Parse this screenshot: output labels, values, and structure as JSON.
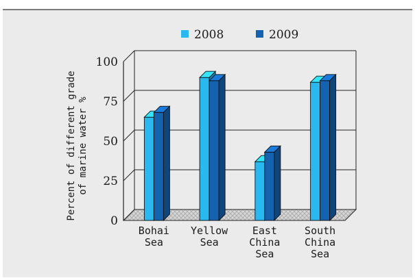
{
  "chart_data": {
    "type": "bar",
    "categories": [
      [
        "Bohai",
        "Sea"
      ],
      [
        "Yellow",
        "Sea"
      ],
      [
        "East",
        "China",
        "Sea"
      ],
      [
        "South",
        "China",
        "Sea"
      ]
    ],
    "series": [
      {
        "name": "2008",
        "values": [
          65,
          90,
          37,
          87
        ],
        "color": "#29b8f0"
      },
      {
        "name": "2009",
        "values": [
          68,
          88,
          43,
          88
        ],
        "color": "#1562b0"
      }
    ],
    "ylabel": [
      "Percent of different grade",
      "of marine water %"
    ],
    "ylim": [
      0,
      100
    ],
    "yticks": [
      "0",
      "25",
      "50",
      "75",
      "100"
    ],
    "grid": true,
    "legend_position": "top",
    "three_d": true,
    "background_color": "#ebebeb",
    "border_color": "#333333"
  }
}
